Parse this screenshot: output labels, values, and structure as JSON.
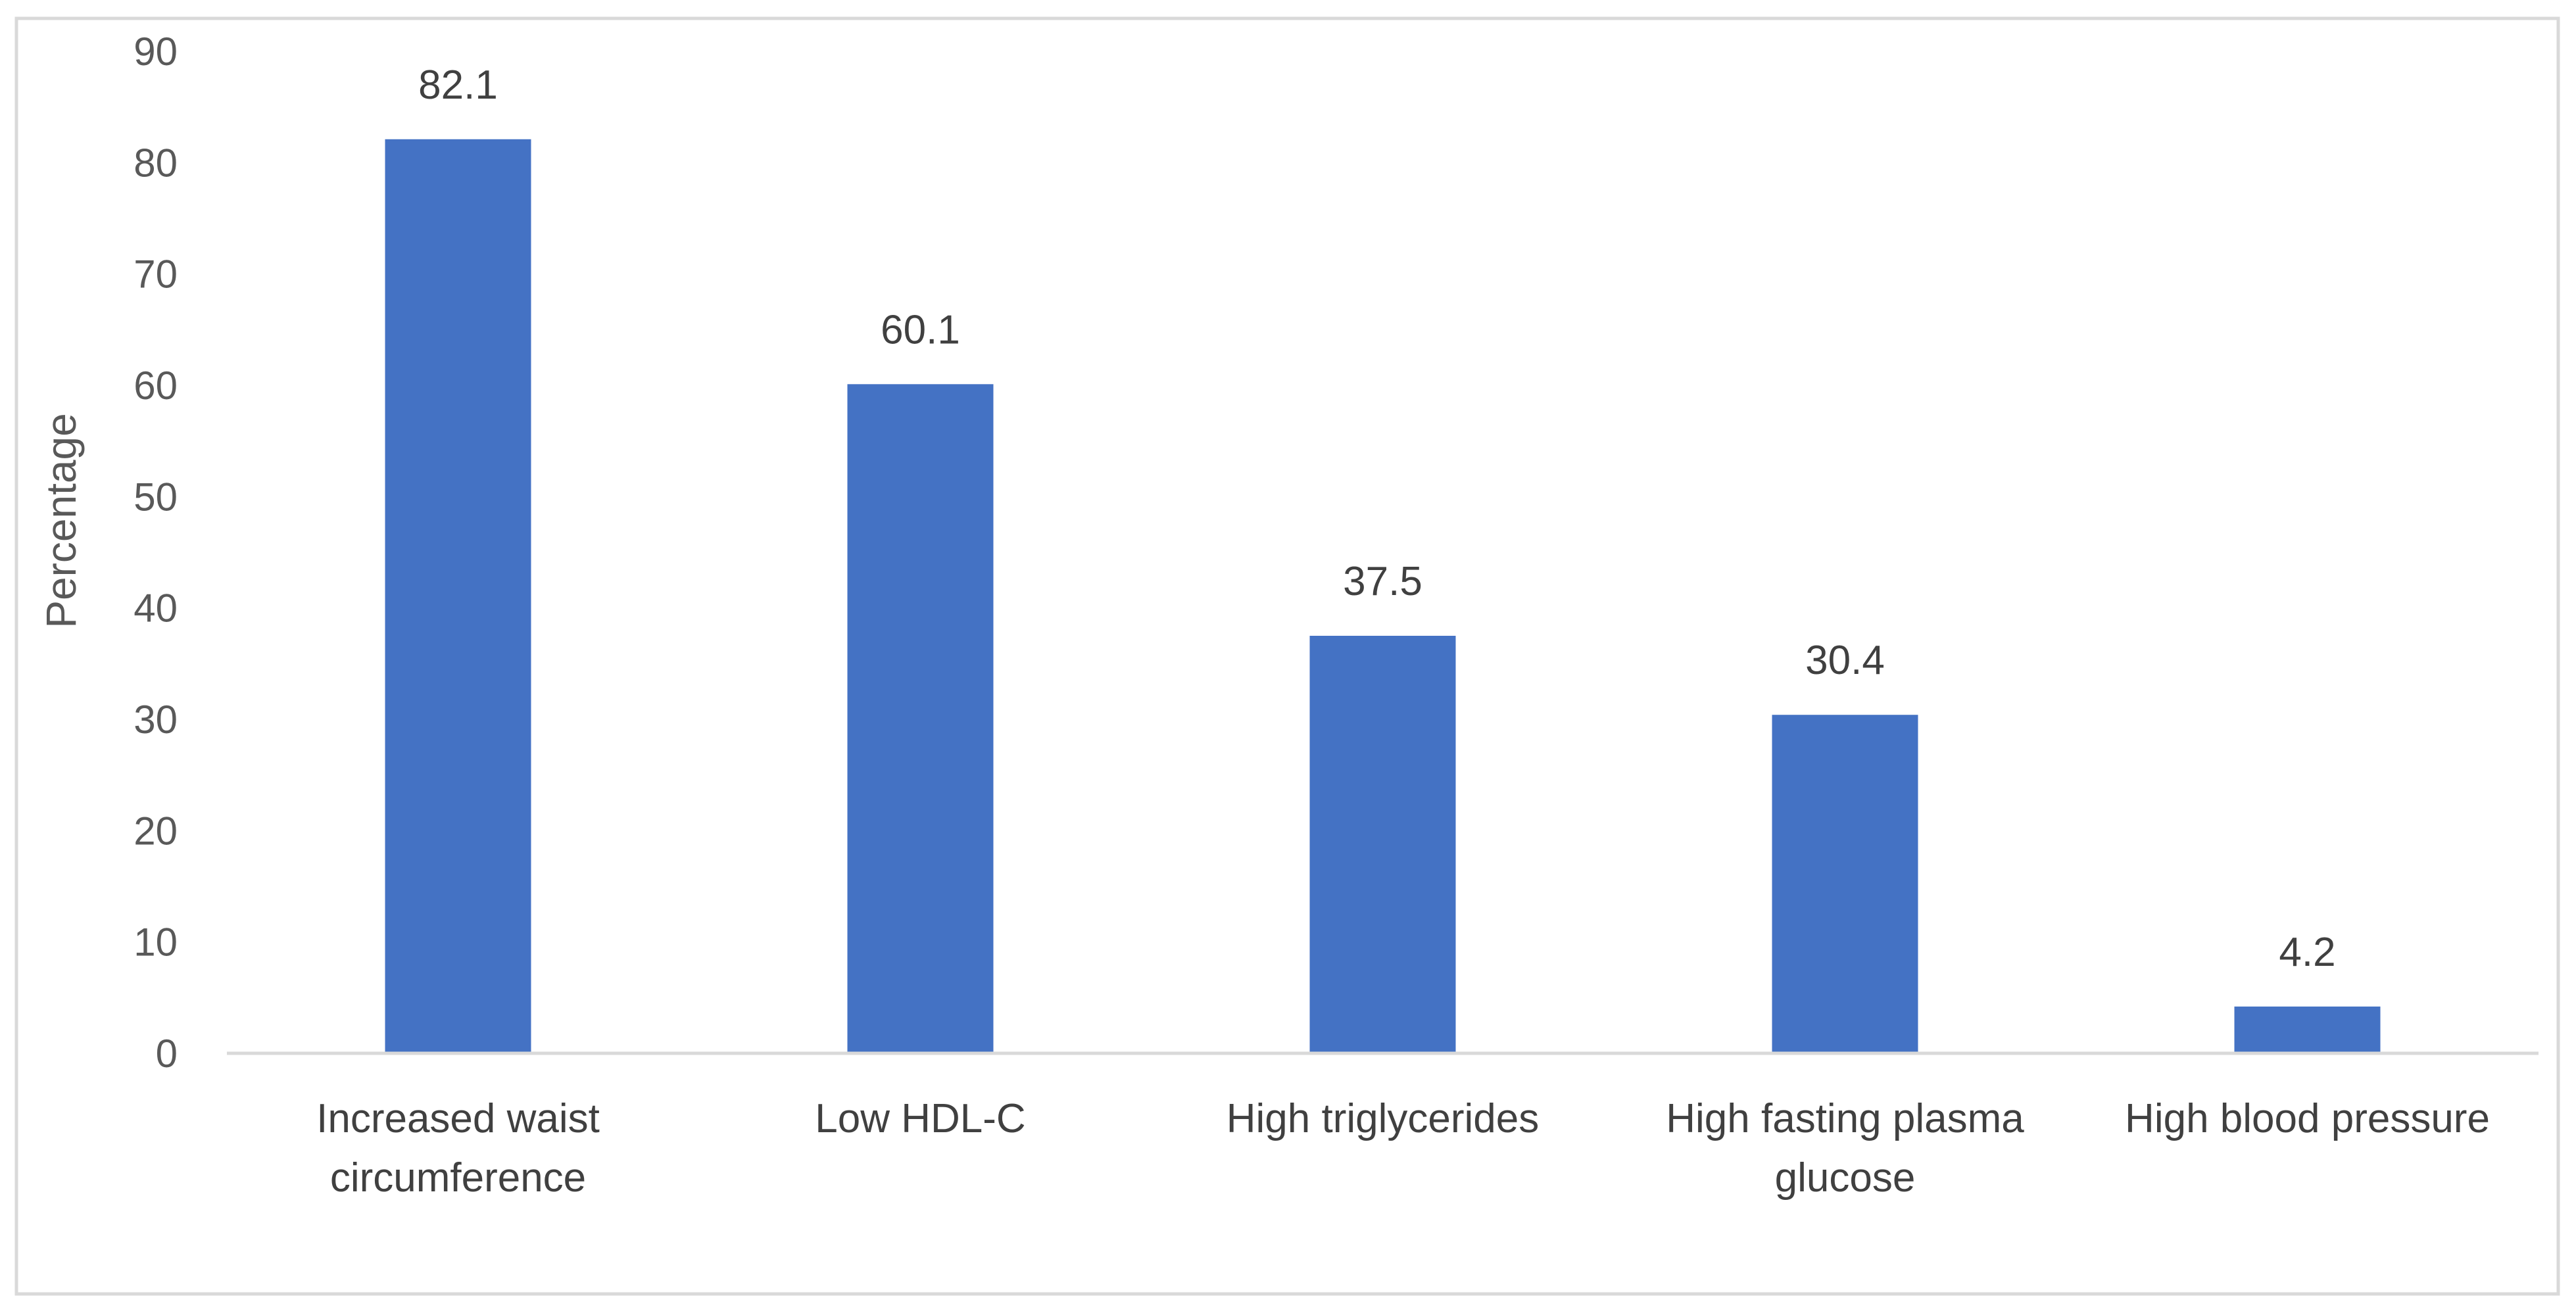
{
  "chart_data": {
    "type": "bar",
    "title": "",
    "xlabel": "",
    "ylabel": "Percentage",
    "ylim": [
      0,
      90
    ],
    "yticks": [
      "0",
      "10",
      "20",
      "30",
      "40",
      "50",
      "60",
      "70",
      "80",
      "90"
    ],
    "grid": false,
    "legend": "none",
    "categories": [
      [
        "Increased waist",
        "circumference"
      ],
      [
        "Low HDL-C"
      ],
      [
        "High triglycerides"
      ],
      [
        "High fasting plasma",
        "glucose"
      ],
      [
        "High blood pressure"
      ]
    ],
    "values": [
      82.1,
      60.1,
      37.5,
      30.4,
      4.2
    ],
    "data_labels": [
      "82.1",
      "60.1",
      "37.5",
      "30.4",
      "4.2"
    ],
    "colors": {
      "bar": "#4472C4",
      "axis": "#D9D9D9",
      "border": "#D9D9D9"
    }
  }
}
